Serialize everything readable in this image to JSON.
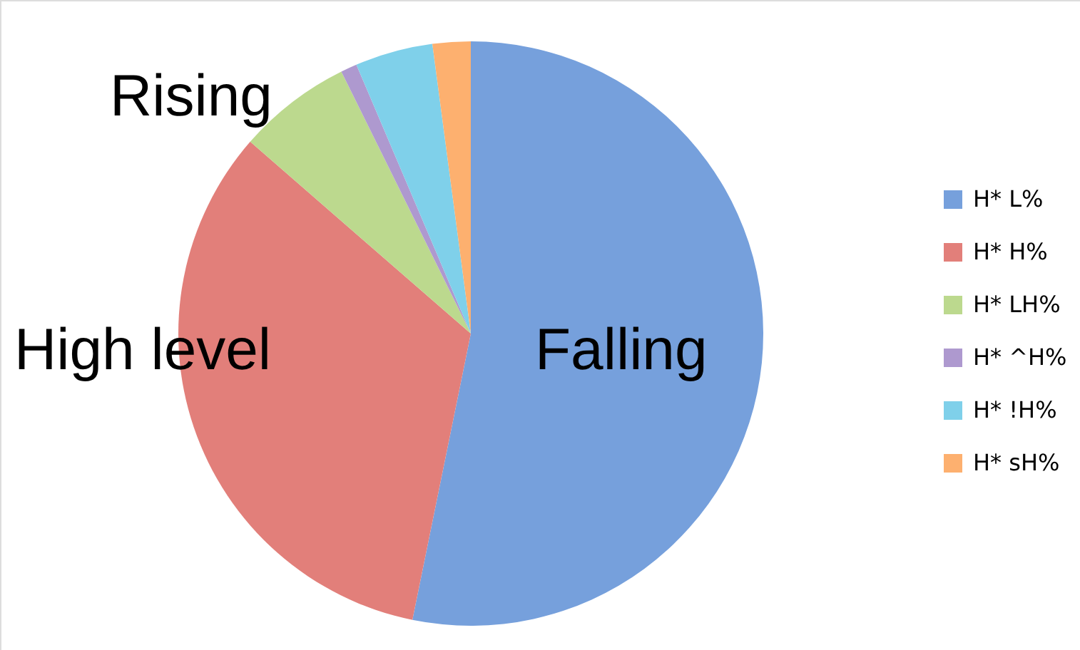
{
  "chart_data": {
    "type": "pie",
    "categories": [
      "H* L%",
      "H* H%",
      "H* LH%",
      "H* ^H%",
      "H* !H%",
      "H* sH%"
    ],
    "values": [
      53.2,
      33.2,
      6.3,
      0.9,
      4.3,
      2.1
    ],
    "colors": [
      "#76a0dc",
      "#e27f7a",
      "#bcd98e",
      "#ae99cf",
      "#7fd0ea",
      "#fdb06f"
    ],
    "legend": "right",
    "annotations": [
      "Rising",
      "High level",
      "Falling"
    ]
  }
}
